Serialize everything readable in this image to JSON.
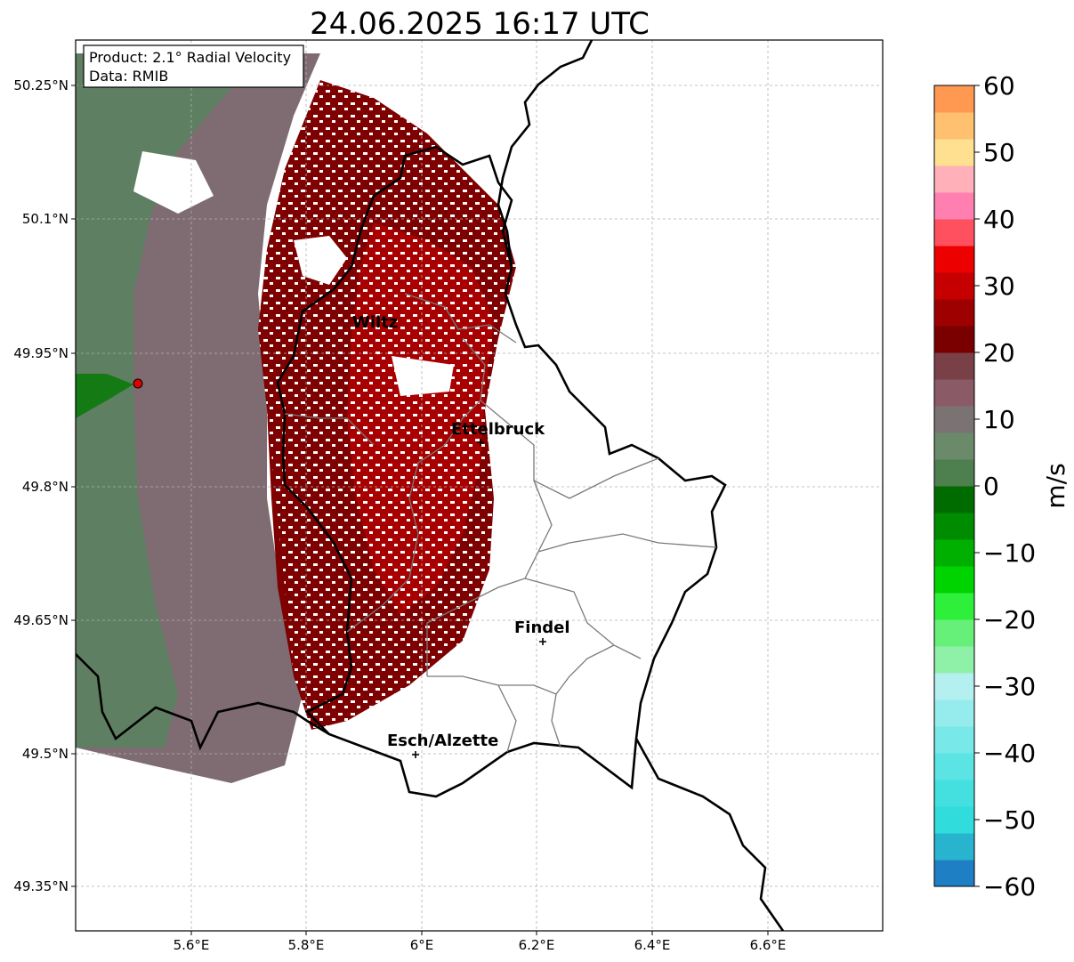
{
  "title": "24.06.2025 16:17 UTC",
  "info_box": {
    "product": "Product: 2.1° Radial Velocity",
    "data_source": "Data: RMIB"
  },
  "map": {
    "lon_ticks": [
      "5.6°E",
      "5.8°E",
      "6°E",
      "6.2°E",
      "6.4°E",
      "6.6°E"
    ],
    "lat_ticks": [
      "50.25°N",
      "50.1°N",
      "49.95°N",
      "49.8°N",
      "49.65°N",
      "49.5°N",
      "49.35°N"
    ],
    "grid": true,
    "radar_site_marker": {
      "color": "#e00000",
      "lon": 5.505,
      "lat": 49.914
    },
    "cities": [
      {
        "name": "Wiltz",
        "lon": 5.93,
        "lat": 49.966,
        "marker": false
      },
      {
        "name": "Ettelbruck",
        "lon": 6.1,
        "lat": 49.847,
        "marker": true
      },
      {
        "name": "Findel",
        "lon": 6.21,
        "lat": 49.627,
        "marker": true
      },
      {
        "name": "Esch/Alzette",
        "lon": 5.99,
        "lat": 49.5,
        "marker": true
      }
    ]
  },
  "colorbar": {
    "label": "m/s",
    "ticks": [
      "60",
      "50",
      "40",
      "30",
      "20",
      "10",
      "0",
      "−10",
      "−20",
      "−30",
      "−40",
      "−50",
      "−60"
    ],
    "range": [
      -60,
      60
    ],
    "colors_low_to_high": [
      "#1f7fc4",
      "#28b4cf",
      "#30dcdc",
      "#44e0e0",
      "#5ce4e4",
      "#78e8e8",
      "#96ecec",
      "#b4f0f0",
      "#8ff0a8",
      "#66f07a",
      "#2ef03a",
      "#00d400",
      "#00b000",
      "#008c00",
      "#006c00",
      "#4e7f4e",
      "#6a8a6a",
      "#7b7373",
      "#8a5a66",
      "#7a4048",
      "#7a0000",
      "#9e0000",
      "#c60000",
      "#ec0000",
      "#ff5060",
      "#ff80b0",
      "#ffb0b8",
      "#ffe090",
      "#ffc070",
      "#ff9850"
    ]
  }
}
